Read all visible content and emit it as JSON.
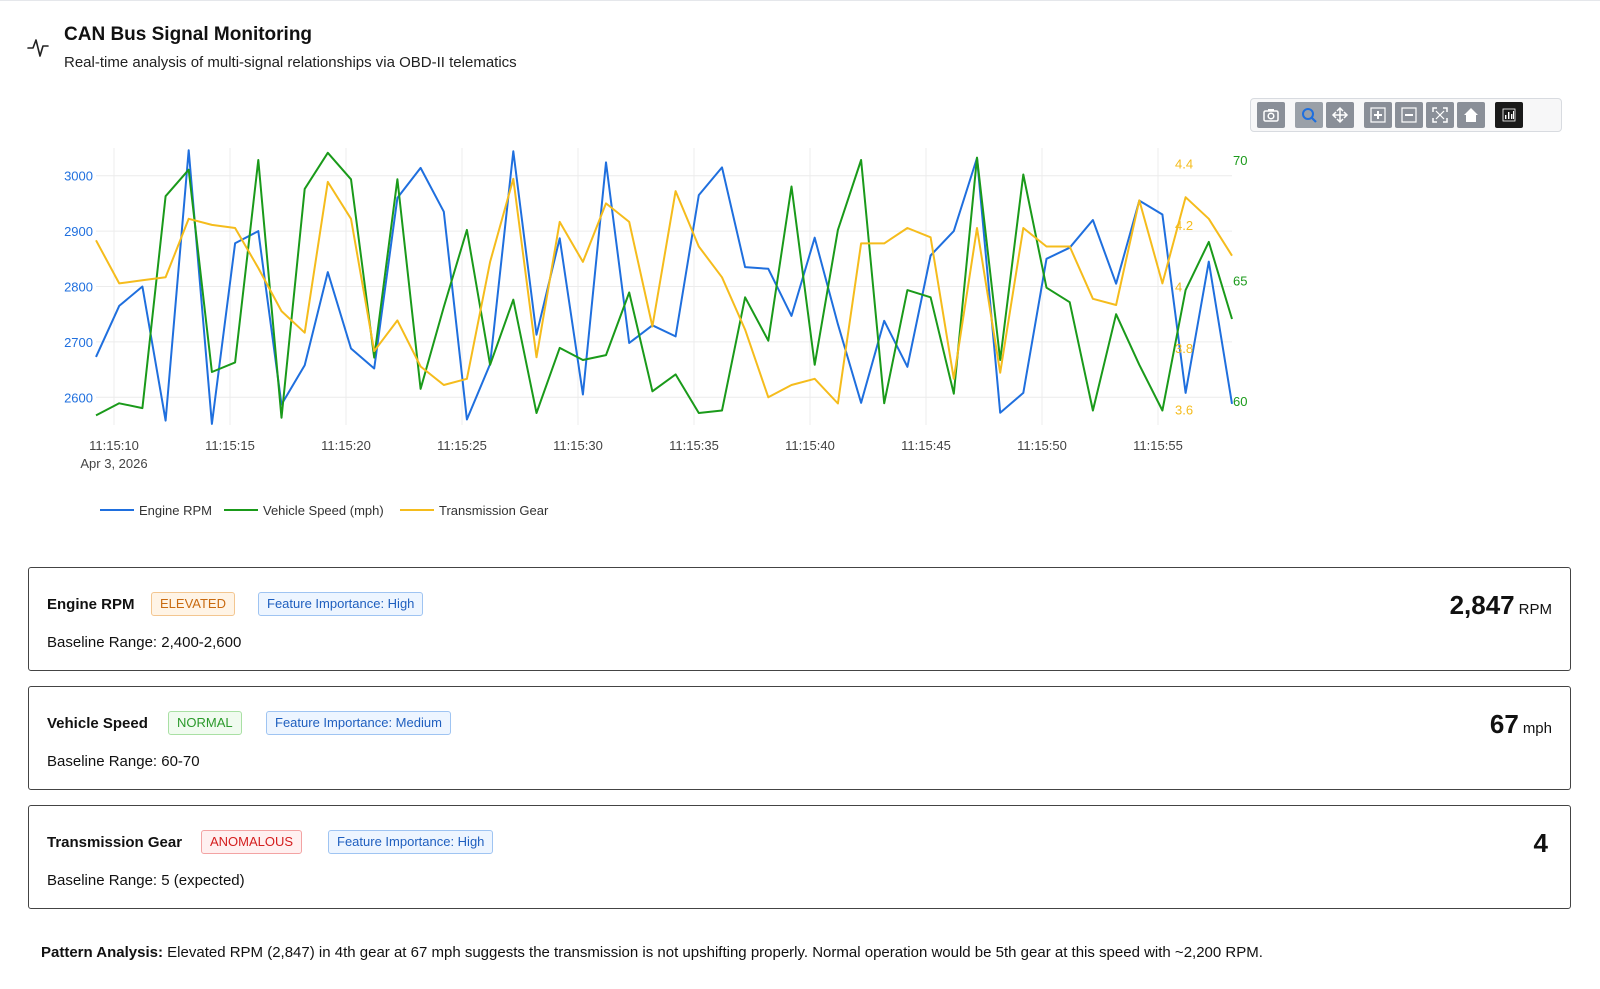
{
  "header": {
    "title": "CAN Bus Signal Monitoring",
    "subtitle": "Real-time analysis of multi-signal relationships via OBD-II telematics"
  },
  "modebar": {
    "icons": [
      "camera-icon",
      "zoom-icon",
      "pan-icon",
      "zoom-in-icon",
      "zoom-out-icon",
      "autoscale-icon",
      "home-icon",
      "plotly-logo-icon"
    ]
  },
  "chart_data": {
    "type": "line",
    "x_ticks": [
      "11:15:10",
      "11:15:15",
      "11:15:20",
      "11:15:25",
      "11:15:30",
      "11:15:35",
      "11:15:40",
      "11:15:45",
      "11:15:50",
      "11:15:55"
    ],
    "x_date_label": "Apr 3, 2026",
    "x_range_seconds": [
      0,
      48
    ],
    "y_left": {
      "ticks": [
        "2600",
        "2700",
        "2800",
        "2900",
        "3000"
      ],
      "range": [
        2550,
        3050
      ],
      "color": "#1f6fde"
    },
    "y_right_speed": {
      "ticks": [
        "60",
        "65",
        "70"
      ],
      "range": [
        59,
        70.5
      ],
      "color": "#1a9a1a"
    },
    "y_right_gear": {
      "ticks": [
        "3.6",
        "3.8",
        "4",
        "4.2",
        "4.4"
      ],
      "range": [
        3.55,
        4.45
      ],
      "color": "#f5bc1c"
    },
    "grid": true,
    "legend_position": "bottom-left",
    "series": [
      {
        "name": "Engine RPM",
        "color": "#1f6fde",
        "axis": "y_left",
        "values": [
          2673,
          2765,
          2800,
          2558,
          3046,
          2552,
          2878,
          2900,
          2587,
          2658,
          2826,
          2688,
          2652,
          2960,
          3014,
          2935,
          2560,
          2660,
          3044,
          2713,
          2887,
          2605,
          3024,
          2698,
          2730,
          2710,
          2965,
          3015,
          2835,
          2832,
          2747,
          2888,
          2732,
          2590,
          2738,
          2655,
          2856,
          2900,
          3032,
          2572,
          2608,
          2850,
          2870,
          2920,
          2805,
          2955,
          2930,
          2608,
          2845,
          2588
        ]
      },
      {
        "name": "Vehicle Speed (mph)",
        "color": "#1a9a1a",
        "axis": "y_right_speed",
        "values": [
          59.4,
          59.9,
          59.7,
          68.5,
          69.6,
          61.2,
          61.6,
          70.0,
          59.3,
          68.8,
          70.3,
          69.2,
          61.8,
          69.2,
          60.5,
          63.9,
          67.1,
          61.5,
          64.2,
          59.5,
          62.2,
          61.7,
          61.9,
          64.5,
          60.4,
          61.1,
          59.5,
          59.6,
          64.3,
          62.5,
          68.9,
          61.5,
          67.1,
          70.0,
          59.9,
          64.6,
          64.3,
          60.3,
          70.1,
          61.7,
          69.4,
          64.7,
          64.1,
          59.6,
          63.6,
          61.5,
          59.6,
          64.6,
          66.6,
          63.4
        ]
      },
      {
        "name": "Transmission Gear",
        "color": "#f5bc1c",
        "axis": "y_right_gear",
        "values": [
          4.15,
          4.01,
          4.02,
          4.03,
          4.22,
          4.2,
          4.19,
          4.06,
          3.92,
          3.85,
          4.34,
          4.22,
          3.79,
          3.89,
          3.74,
          3.68,
          3.7,
          4.08,
          4.35,
          3.77,
          4.21,
          4.08,
          4.27,
          4.21,
          3.87,
          4.31,
          4.13,
          4.03,
          3.86,
          3.64,
          3.68,
          3.7,
          3.62,
          4.14,
          4.14,
          4.19,
          4.16,
          3.7,
          4.19,
          3.72,
          4.19,
          4.13,
          4.13,
          3.96,
          3.94,
          4.28,
          4.01,
          4.29,
          4.22,
          4.1
        ]
      }
    ]
  },
  "cards": [
    {
      "name": "Engine RPM",
      "status": "ELEVATED",
      "importance": "Feature Importance: High",
      "baseline": "Baseline Range: 2,400-2,600",
      "value": "2,847",
      "unit": "RPM"
    },
    {
      "name": "Vehicle Speed",
      "status": "NORMAL",
      "importance": "Feature Importance: Medium",
      "baseline": "Baseline Range: 60-70",
      "value": "67",
      "unit": "mph"
    },
    {
      "name": "Transmission Gear",
      "status": "ANOMALOUS",
      "importance": "Feature Importance: High",
      "baseline": "Baseline Range: 5 (expected)",
      "value": "4",
      "unit": ""
    }
  ],
  "analysis": {
    "label": "Pattern Analysis:",
    "text": " Elevated RPM (2,847) in 4th gear at 67 mph suggests the transmission is not upshifting properly. Normal operation would be 5th gear at this speed with ~2,200 RPM."
  }
}
